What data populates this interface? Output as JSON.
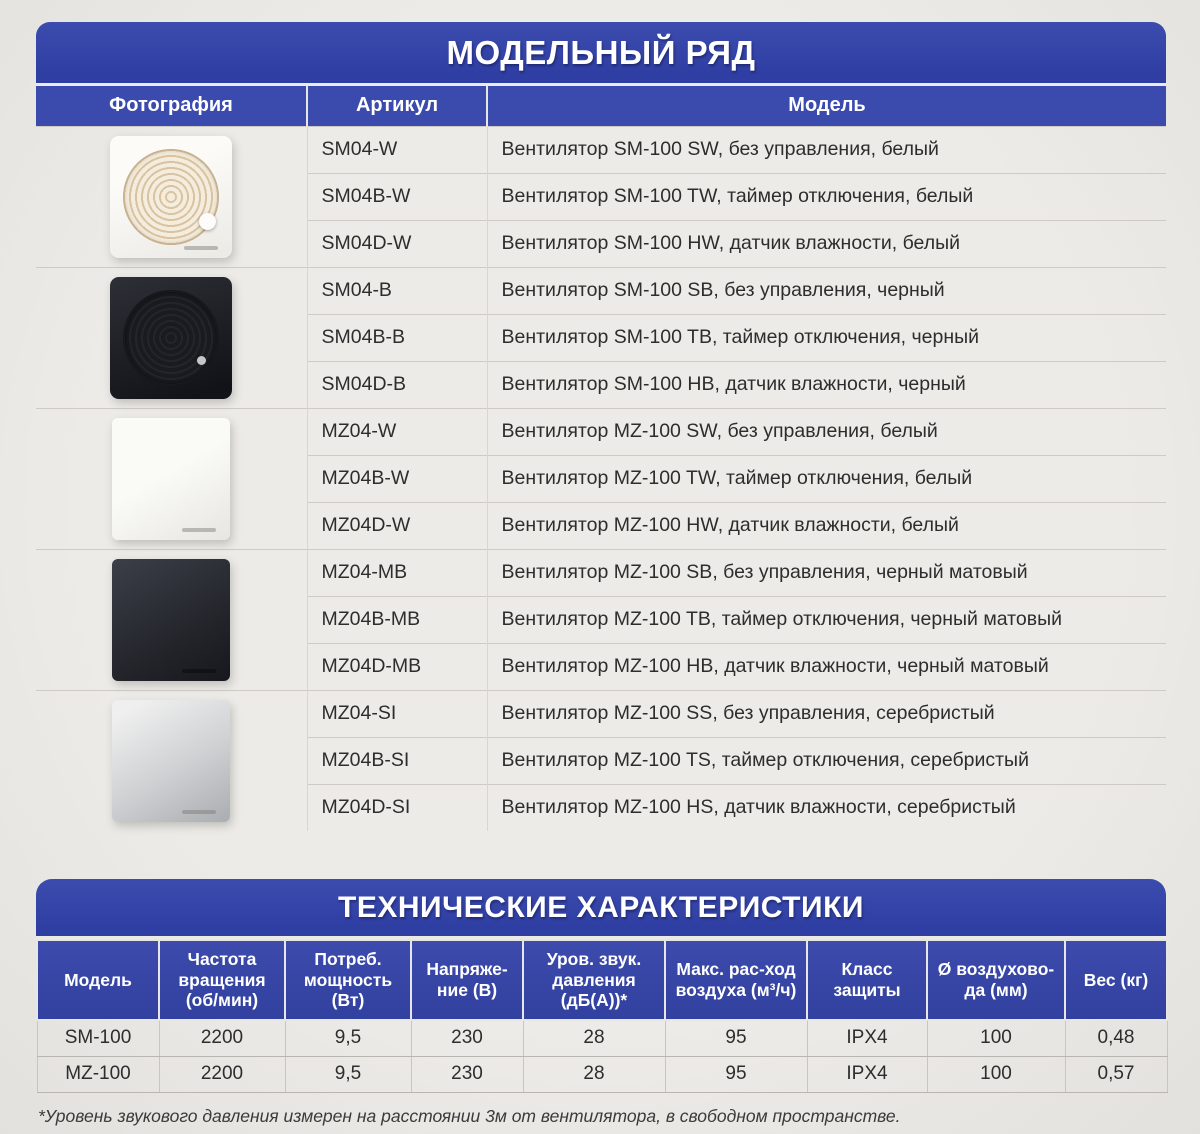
{
  "colors": {
    "accent_blue": "#3242a4",
    "header_blue": "#3b4aad",
    "page_bg": "#e8e6e2"
  },
  "model_range": {
    "title": "МОДЕЛЬНЫЙ РЯД",
    "columns": {
      "photo": "Фотография",
      "article": "Артикул",
      "model": "Модель"
    },
    "groups": [
      {
        "photo": "white-round-fan",
        "rows": [
          {
            "article": "SM04-W",
            "model": "Вентилятор SM-100 SW, без управления, белый"
          },
          {
            "article": "SM04B-W",
            "model": "Вентилятор SM-100 TW, таймер отключения, белый"
          },
          {
            "article": "SM04D-W",
            "model": "Вентилятор SM-100 HW, датчик влажности, белый"
          }
        ]
      },
      {
        "photo": "black-round-fan",
        "rows": [
          {
            "article": "SM04-B",
            "model": "Вентилятор SM-100 SB, без управления, черный"
          },
          {
            "article": "SM04B-B",
            "model": "Вентилятор SM-100 TB, таймер отключения, черный"
          },
          {
            "article": "SM04D-B",
            "model": "Вентилятор SM-100 HB, датчик влажности, черный"
          }
        ]
      },
      {
        "photo": "white-flat-fan",
        "rows": [
          {
            "article": "MZ04-W",
            "model": "Вентилятор MZ-100 SW, без управления, белый"
          },
          {
            "article": "MZ04B-W",
            "model": "Вентилятор MZ-100 TW, таймер отключения, белый"
          },
          {
            "article": "MZ04D-W",
            "model": "Вентилятор MZ-100 HW, датчик влажности, белый"
          }
        ]
      },
      {
        "photo": "black-matte-flat-fan",
        "rows": [
          {
            "article": "MZ04-MB",
            "model": "Вентилятор MZ-100 SB, без управления, черный матовый"
          },
          {
            "article": "MZ04B-MB",
            "model": "Вентилятор MZ-100 TB, таймер отключения, черный матовый"
          },
          {
            "article": "MZ04D-MB",
            "model": "Вентилятор MZ-100 HB, датчик влажности, черный матовый"
          }
        ]
      },
      {
        "photo": "silver-flat-fan",
        "rows": [
          {
            "article": "MZ04-SI",
            "model": "Вентилятор MZ-100 SS, без управления, серебристый"
          },
          {
            "article": "MZ04B-SI",
            "model": "Вентилятор MZ-100 TS, таймер отключения, серебристый"
          },
          {
            "article": "MZ04D-SI",
            "model": "Вентилятор MZ-100 HS, датчик влажности, серебристый"
          }
        ]
      }
    ]
  },
  "tech_specs": {
    "title": "ТЕХНИЧЕСКИЕ ХАРАКТЕРИСТИКИ",
    "columns": [
      "Модель",
      "Частота вращения (об/мин)",
      "Потреб. мощность (Вт)",
      "Напряже-ние (В)",
      "Уров. звук. давления (дБ(А))*",
      "Макс. рас-ход воздуха (м³/ч)",
      "Класс защиты",
      "Ø воздухово-да (мм)",
      "Вес (кг)"
    ],
    "rows": [
      [
        "SM-100",
        "2200",
        "9,5",
        "230",
        "28",
        "95",
        "IPX4",
        "100",
        "0,48"
      ],
      [
        "MZ-100",
        "2200",
        "9,5",
        "230",
        "28",
        "95",
        "IPX4",
        "100",
        "0,57"
      ]
    ],
    "footnote": "*Уровень звукового давления измерен на расстоянии 3м от вентилятора, в свободном пространстве."
  }
}
